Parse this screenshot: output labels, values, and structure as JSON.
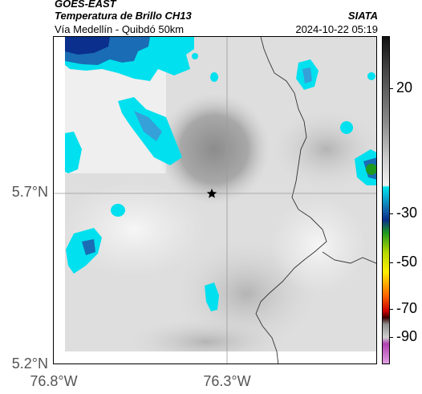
{
  "header": {
    "satellite": "GOES-EAST",
    "product": "Temperatura de Brillo CH13",
    "route": "Vía Medellín - Quibdó 50km",
    "agency": "SIATA",
    "timestamp": "2024-10-22 05:19"
  },
  "map": {
    "lat_labels": [
      "5.7°N",
      "5.2°N"
    ],
    "lon_labels": [
      "76.8°W",
      "76.3°W"
    ],
    "marker": "star",
    "background": "#e3e3e3"
  },
  "colorbar": {
    "labels": [
      "20",
      "-30",
      "-50",
      "-70",
      "-90"
    ],
    "colors": [
      "#111111",
      "#444444",
      "#8a8a8a",
      "#d0d0d0",
      "#f2f2f2",
      "#00e5ee",
      "#1464aa",
      "#0a2f8c",
      "#1e9a1e",
      "#b4d800",
      "#ffee00",
      "#ff6a00",
      "#cc0000",
      "#3a0000",
      "#909090",
      "#d0d0d0",
      "#b040b0",
      "#e2a0e2"
    ]
  }
}
